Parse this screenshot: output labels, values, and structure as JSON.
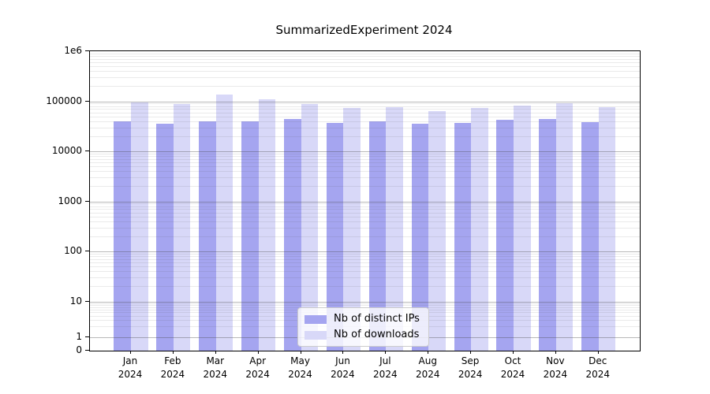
{
  "title": "SummarizedExperiment 2024",
  "chart_data": {
    "type": "bar",
    "title": "SummarizedExperiment 2024",
    "scale": "log",
    "ylim": [
      0,
      1000000
    ],
    "y_ticks": [
      "1e6",
      "100000",
      "10000",
      "1000",
      "100",
      "10",
      "1",
      "0"
    ],
    "grid": "horizontal major+minor log gridlines",
    "legend_position": "lower center",
    "months": [
      "Jan",
      "Feb",
      "Mar",
      "Apr",
      "May",
      "Jun",
      "Jul",
      "Aug",
      "Sep",
      "Oct",
      "Nov",
      "Dec"
    ],
    "year": "2024",
    "categories": [
      "Jan 2024",
      "Feb 2024",
      "Mar 2024",
      "Apr 2024",
      "May 2024",
      "Jun 2024",
      "Jul 2024",
      "Aug 2024",
      "Sep 2024",
      "Oct 2024",
      "Nov 2024",
      "Dec 2024"
    ],
    "series": [
      {
        "name": "Nb of distinct IPs",
        "color": "#a5a5f0",
        "values": [
          39000,
          36000,
          40000,
          39000,
          45000,
          37000,
          40000,
          35000,
          37000,
          43000,
          45000,
          38000
        ]
      },
      {
        "name": "Nb of downloads",
        "color": "#d8d8f8",
        "values": [
          96000,
          87000,
          134000,
          108000,
          88000,
          74000,
          76000,
          64000,
          74000,
          83000,
          91000,
          75000
        ]
      }
    ]
  }
}
